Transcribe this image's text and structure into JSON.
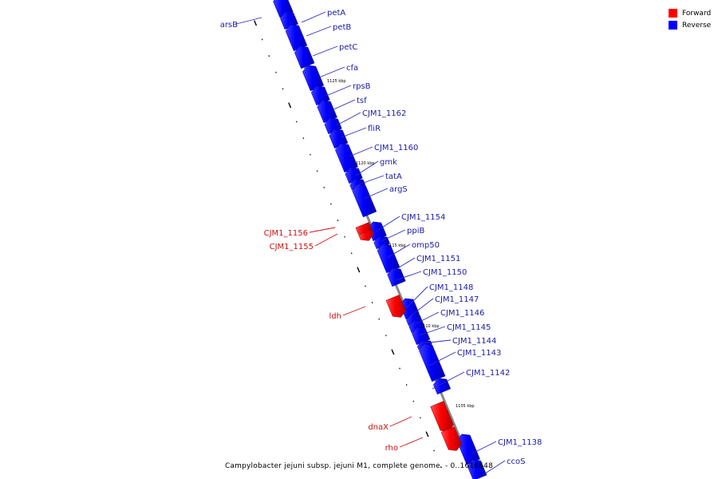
{
  "legend": [
    {
      "label": "Forward",
      "color": "#ff0000"
    },
    {
      "label": "Reverse",
      "color": "#0000ff"
    }
  ],
  "caption": "Campylobacter jejuni subsp. jejuni M1, complete genome. - 0..1616648",
  "axis_ticks": [
    "1125 kbp",
    "1120 kbp",
    "1115 kbp",
    "1110 kbp",
    "1105 kbp"
  ],
  "reverse_genes": [
    "arsB",
    "petA",
    "petB",
    "petC",
    "cfa",
    "rpsB",
    "tsf",
    "CJM1_1162",
    "fliR",
    "CJM1_1160",
    "gmk",
    "tatA",
    "argS",
    "CJM1_1154",
    "ppiB",
    "omp50",
    "CJM1_1151",
    "CJM1_1150",
    "CJM1_1148",
    "CJM1_1147",
    "CJM1_1146",
    "CJM1_1145",
    "CJM1_1144",
    "CJM1_1143",
    "CJM1_1142",
    "CJM1_1138",
    "ccoS"
  ],
  "forward_genes": [
    "CJM1_1156",
    "CJM1_1155",
    "ldh",
    "dnaX",
    "rho"
  ],
  "colors": {
    "forward": "#ff0000",
    "reverse": "#0000ff",
    "backbone": "#888888",
    "reverse_label": "#1a1aa8",
    "forward_label": "#c81010"
  }
}
